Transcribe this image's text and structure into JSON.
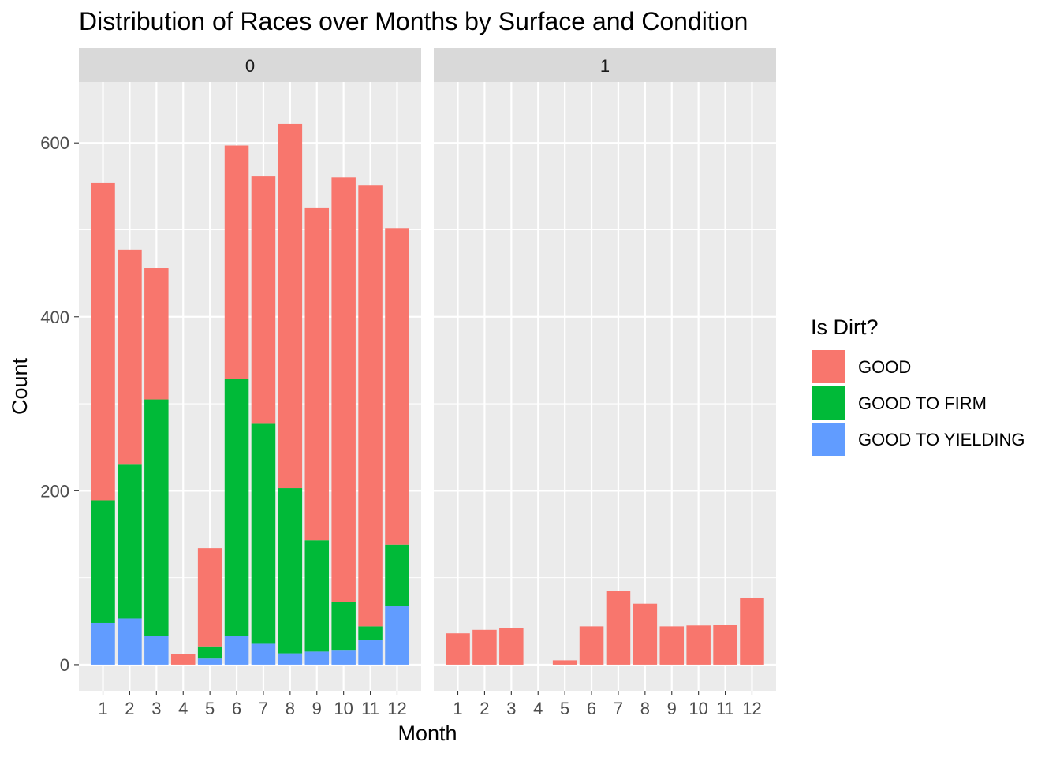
{
  "chart_data": {
    "type": "bar",
    "stacked": true,
    "title": "Distribution of Races over Months by Surface and Condition",
    "xlabel": "Month",
    "ylabel": "Count",
    "ylim": [
      -30,
      670
    ],
    "y_ticks": [
      0,
      200,
      400,
      600
    ],
    "categories": [
      "1",
      "2",
      "3",
      "4",
      "5",
      "6",
      "7",
      "8",
      "9",
      "10",
      "11",
      "12"
    ],
    "legend": {
      "title": "Is Dirt?",
      "position": "right",
      "entries": [
        "GOOD",
        "GOOD TO FIRM",
        "GOOD TO YIELDING"
      ]
    },
    "colors": {
      "GOOD": "#F8766D",
      "GOOD TO FIRM": "#00BA38",
      "GOOD TO YIELDING": "#619CFF",
      "panel_bg": "#EBEBEB",
      "strip_bg": "#D9D9D9",
      "grid": "#FFFFFF"
    },
    "grid": true,
    "facets": [
      {
        "label": "0",
        "series": [
          {
            "name": "GOOD TO YIELDING",
            "values": [
              48,
              53,
              33,
              0,
              7,
              33,
              24,
              13,
              15,
              17,
              28,
              67
            ]
          },
          {
            "name": "GOOD TO FIRM",
            "values": [
              141,
              177,
              272,
              0,
              14,
              296,
              253,
              190,
              128,
              55,
              16,
              71
            ]
          },
          {
            "name": "GOOD",
            "values": [
              365,
              247,
              151,
              12,
              113,
              268,
              285,
              419,
              382,
              488,
              507,
              364
            ]
          }
        ]
      },
      {
        "label": "1",
        "series": [
          {
            "name": "GOOD TO YIELDING",
            "values": [
              0,
              0,
              0,
              0,
              0,
              0,
              0,
              0,
              0,
              0,
              0,
              0
            ]
          },
          {
            "name": "GOOD TO FIRM",
            "values": [
              0,
              0,
              0,
              0,
              0,
              0,
              0,
              0,
              0,
              0,
              0,
              0
            ]
          },
          {
            "name": "GOOD",
            "values": [
              36,
              40,
              42,
              0,
              5,
              44,
              85,
              70,
              44,
              45,
              46,
              77
            ]
          }
        ]
      }
    ]
  }
}
